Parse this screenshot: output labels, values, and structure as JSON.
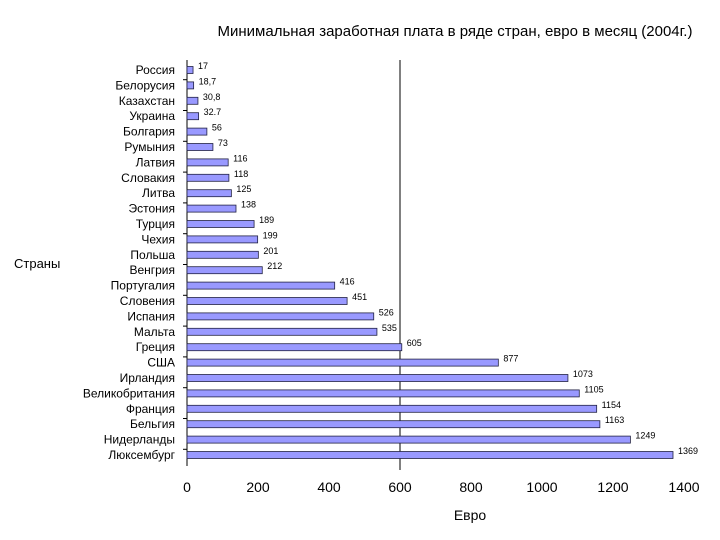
{
  "chart_data": {
    "type": "bar",
    "orientation": "horizontal",
    "title": "Минимальная заработная плата в ряде стран, евро в месяц (2004г.)",
    "xlabel": "Евро",
    "ylabel": "Страны",
    "xlim": [
      0,
      1400
    ],
    "xticks": [
      "0",
      "200",
      "400",
      "600",
      "800",
      "1000",
      "1200",
      "1400"
    ],
    "reference_line_x": 600,
    "bar_color": "#9999ff",
    "categories": [
      "Россия",
      "Белорусия",
      "Казахстан",
      "Украина",
      "Болгария",
      "Румыния",
      "Латвия",
      "Словакия",
      "Литва",
      "Эстония",
      "Турция",
      "Чехия",
      "Польша",
      "Венгрия",
      "Португалия",
      "Словения",
      "Испания",
      "Мальта",
      "Греция",
      "США",
      "Ирландия",
      "Великобритания",
      "Франция",
      "Бельгия",
      "Нидерланды",
      "Люксембург"
    ],
    "values": [
      17,
      18.7,
      30.8,
      32.7,
      56,
      73,
      116,
      118,
      125,
      138,
      189,
      199,
      201,
      212,
      416,
      451,
      526,
      535,
      605,
      877,
      1073,
      1105,
      1154,
      1163,
      1249,
      1369
    ],
    "value_labels": [
      "17",
      "18,7",
      "30,8",
      "32.7",
      "56",
      "73",
      "116",
      "118",
      "125",
      "138",
      "189",
      "199",
      "201",
      "212",
      "416",
      "451",
      "526",
      "535",
      "605",
      "877",
      "1073",
      "1105",
      "1154",
      "1163",
      "1249",
      "1369"
    ]
  }
}
